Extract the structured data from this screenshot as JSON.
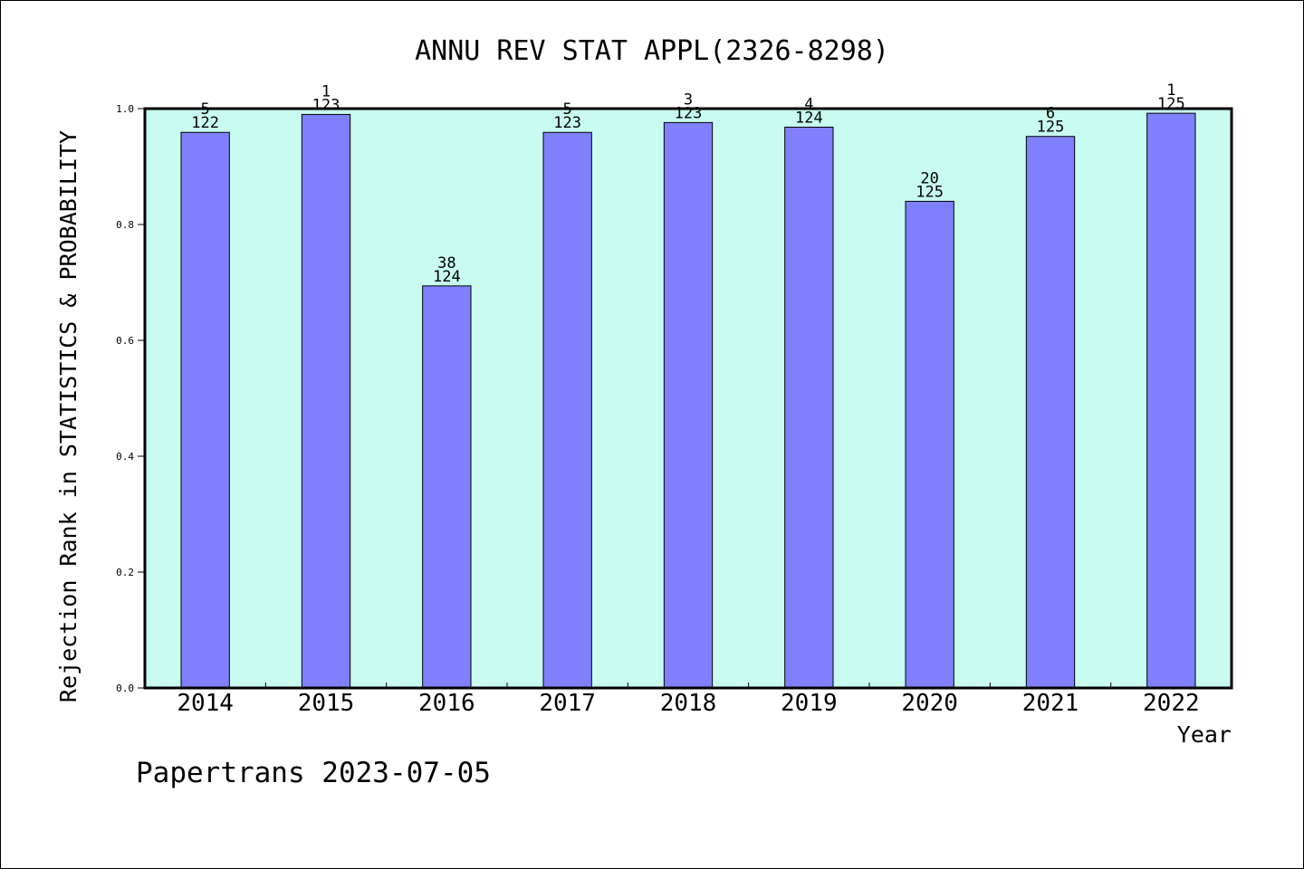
{
  "chart_data": {
    "type": "bar",
    "title": "ANNU REV STAT APPL(2326-8298)",
    "xlabel": "Year",
    "ylabel": "Rejection Rank in STATISTICS & PROBABILITY",
    "ylim": [
      0,
      1.0
    ],
    "yticks": [
      "0.0",
      "0.2",
      "0.4",
      "0.6",
      "0.8",
      "1.0"
    ],
    "categories": [
      "2014",
      "2015",
      "2016",
      "2017",
      "2018",
      "2019",
      "2020",
      "2021",
      "2022"
    ],
    "values": [
      0.959,
      0.99,
      0.694,
      0.959,
      0.976,
      0.968,
      0.84,
      0.952,
      0.992
    ],
    "rank_labels": [
      "5",
      "1",
      "38",
      "5",
      "3",
      "4",
      "20",
      "6",
      "1"
    ],
    "total_labels": [
      "122",
      "123",
      "124",
      "123",
      "123",
      "124",
      "125",
      "125",
      "125"
    ],
    "grid": false,
    "colors": {
      "plot_bg": "#c8fcf0",
      "bar": "#8080ff"
    }
  },
  "footer": "Papertrans 2023-07-05"
}
